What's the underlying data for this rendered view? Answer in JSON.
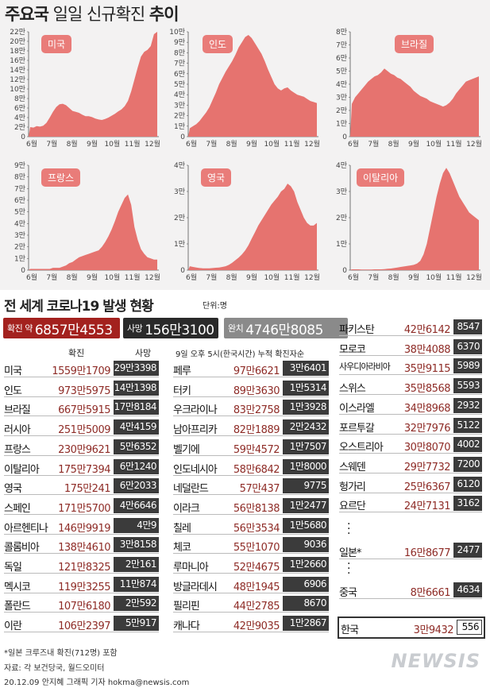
{
  "title": {
    "bold1": "주요국",
    "normal": " 일일 신규확진 ",
    "bold2": "추이"
  },
  "chart_data": [
    {
      "type": "area",
      "label": "미국",
      "y_ticks": [
        "0",
        "2만",
        "4만",
        "6만",
        "8만",
        "10만",
        "12만",
        "14만",
        "16만",
        "18만",
        "20만",
        "22만"
      ],
      "x_ticks": [
        "6월",
        "7월",
        "8월",
        "9월",
        "10월",
        "11월",
        "12월"
      ],
      "ylim": [
        0,
        22
      ],
      "values": [
        2.0,
        1.9,
        2.2,
        2.1,
        2.3,
        2.9,
        4.0,
        5.2,
        6.2,
        6.8,
        6.9,
        6.6,
        6.0,
        5.4,
        5.2,
        5.0,
        4.6,
        4.3,
        4.3,
        4.1,
        3.8,
        3.6,
        3.5,
        3.7,
        4.0,
        4.4,
        4.8,
        5.3,
        5.7,
        6.4,
        7.5,
        9.5,
        12.0,
        14.5,
        16.8,
        17.8,
        18.2,
        19.0,
        21.5,
        22.0
      ]
    },
    {
      "type": "area",
      "label": "인도",
      "y_ticks": [
        "0",
        "1만",
        "2만",
        "3만",
        "4만",
        "5만",
        "6만",
        "7만",
        "8만",
        "9만",
        "10만"
      ],
      "x_ticks": [
        "6월",
        "7월",
        "8월",
        "9월",
        "10월",
        "11월",
        "12월"
      ],
      "ylim": [
        0,
        10
      ],
      "values": [
        0.8,
        1.0,
        1.2,
        1.5,
        1.9,
        2.3,
        2.8,
        3.5,
        4.2,
        5.0,
        5.6,
        6.2,
        6.7,
        7.2,
        7.8,
        8.5,
        9.0,
        9.5,
        9.7,
        9.4,
        8.9,
        8.4,
        7.9,
        7.2,
        6.4,
        5.7,
        5.0,
        4.6,
        4.4,
        4.6,
        4.7,
        4.4,
        4.2,
        4.0,
        3.9,
        3.8,
        3.6,
        3.4,
        3.3,
        3.2
      ]
    },
    {
      "type": "area",
      "label": "브라질",
      "y_ticks": [
        "0",
        "1만",
        "2만",
        "3만",
        "4만",
        "5만",
        "6만",
        "7만",
        "8만"
      ],
      "x_ticks": [
        "6월",
        "7월",
        "8월",
        "9월",
        "10월",
        "11월",
        "12월"
      ],
      "ylim": [
        0,
        8
      ],
      "values": [
        2.5,
        3.0,
        3.3,
        3.6,
        3.9,
        4.2,
        4.4,
        4.6,
        4.7,
        4.9,
        5.2,
        5.0,
        4.8,
        4.7,
        4.5,
        4.4,
        4.2,
        4.0,
        3.8,
        3.5,
        3.3,
        3.1,
        3.0,
        2.9,
        2.7,
        2.6,
        2.5,
        2.4,
        2.3,
        2.4,
        2.6,
        2.9,
        3.3,
        3.6,
        3.9,
        4.2,
        4.3,
        4.4,
        4.5,
        4.6
      ]
    },
    {
      "type": "area",
      "label": "프랑스",
      "y_ticks": [
        "0",
        "1만",
        "2만",
        "3만",
        "4만",
        "5만",
        "6만",
        "7만",
        "8만",
        "9만"
      ],
      "x_ticks": [
        "6월",
        "7월",
        "8월",
        "9월",
        "10월",
        "11월",
        "12월"
      ],
      "ylim": [
        0,
        9
      ],
      "values": [
        0.1,
        0.1,
        0.1,
        0.1,
        0.1,
        0.1,
        0.1,
        0.2,
        0.2,
        0.2,
        0.3,
        0.4,
        0.6,
        0.7,
        0.9,
        1.1,
        1.2,
        1.3,
        1.4,
        1.5,
        1.6,
        1.7,
        2.0,
        2.4,
        2.9,
        3.5,
        4.2,
        5.0,
        5.6,
        6.2,
        6.5,
        5.6,
        3.7,
        2.6,
        1.8,
        1.4,
        1.1,
        1.0,
        0.9,
        0.9
      ]
    },
    {
      "type": "area",
      "label": "영국",
      "y_ticks": [
        "0",
        "1만",
        "2만",
        "3만",
        "4만"
      ],
      "x_ticks": [
        "6월",
        "7월",
        "8월",
        "9월",
        "10월",
        "11월",
        "12월"
      ],
      "ylim": [
        0,
        4
      ],
      "values": [
        0.15,
        0.12,
        0.1,
        0.08,
        0.07,
        0.07,
        0.07,
        0.08,
        0.09,
        0.1,
        0.12,
        0.15,
        0.2,
        0.28,
        0.38,
        0.48,
        0.6,
        0.75,
        0.95,
        1.2,
        1.45,
        1.7,
        1.9,
        2.1,
        2.3,
        2.5,
        2.65,
        2.8,
        3.0,
        3.1,
        3.3,
        3.2,
        3.0,
        2.6,
        2.3,
        2.0,
        1.8,
        1.7,
        1.7,
        1.8
      ]
    },
    {
      "type": "area",
      "label": "이탈리아",
      "y_ticks": [
        "0",
        "1만",
        "2만",
        "3만",
        "4만"
      ],
      "x_ticks": [
        "6월",
        "7월",
        "8월",
        "9월",
        "10월",
        "11월",
        "12월"
      ],
      "ylim": [
        0,
        4
      ],
      "values": [
        0.03,
        0.03,
        0.03,
        0.02,
        0.02,
        0.02,
        0.02,
        0.03,
        0.03,
        0.03,
        0.04,
        0.05,
        0.06,
        0.08,
        0.1,
        0.12,
        0.14,
        0.16,
        0.18,
        0.2,
        0.25,
        0.35,
        0.6,
        1.0,
        1.6,
        2.2,
        2.8,
        3.3,
        3.7,
        3.9,
        3.7,
        3.4,
        3.1,
        2.8,
        2.6,
        2.4,
        2.2,
        2.1,
        2.0,
        1.9
      ]
    }
  ],
  "section": {
    "title": "전 세계 코로나19 발생 현황",
    "unit": "단위:명"
  },
  "summary": [
    {
      "label": "확진 약",
      "value": "6857만4553",
      "color": "#a3211e"
    },
    {
      "label": "사망",
      "value": "156만3100",
      "color": "#2a2a2a"
    },
    {
      "label": "완치",
      "value": "4746만8085",
      "color": "#8a8a8a"
    }
  ],
  "col_headers": {
    "confirmed": "확진",
    "deaths": "사망",
    "note": "9일 오후 5시(한국시간) 누적 확진자순"
  },
  "col1": [
    {
      "name": "미국",
      "confirmed": "1559만1709",
      "deaths": "29만3398"
    },
    {
      "name": "인도",
      "confirmed": "973만5975",
      "deaths": "14만1398"
    },
    {
      "name": "브라질",
      "confirmed": "667만5915",
      "deaths": "17만8184"
    },
    {
      "name": "러시아",
      "confirmed": "251만5009",
      "deaths": "4만4159"
    },
    {
      "name": "프랑스",
      "confirmed": "230만9621",
      "deaths": "5만6352"
    },
    {
      "name": "이탈리아",
      "confirmed": "175만7394",
      "deaths": "6만1240"
    },
    {
      "name": "영국",
      "confirmed": "175만241",
      "deaths": "6만2033"
    },
    {
      "name": "스페인",
      "confirmed": "171만5700",
      "deaths": "4만6646"
    },
    {
      "name": "아르헨티나",
      "confirmed": "146만9919",
      "deaths": "4만9"
    },
    {
      "name": "콜롬비아",
      "confirmed": "138만4610",
      "deaths": "3만8158"
    },
    {
      "name": "독일",
      "confirmed": "121만8325",
      "deaths": "2만161"
    },
    {
      "name": "멕시코",
      "confirmed": "119만3255",
      "deaths": "11만874"
    },
    {
      "name": "폴란드",
      "confirmed": "107만6180",
      "deaths": "2만592"
    },
    {
      "name": "이란",
      "confirmed": "106만2397",
      "deaths": "5만917"
    }
  ],
  "col2": [
    {
      "name": "페루",
      "confirmed": "97만6621",
      "deaths": "3만6401"
    },
    {
      "name": "터키",
      "confirmed": "89만3630",
      "deaths": "1만5314"
    },
    {
      "name": "우크라이나",
      "confirmed": "83만2758",
      "deaths": "1만3928"
    },
    {
      "name": "남아프리카",
      "confirmed": "82만1889",
      "deaths": "2만2432"
    },
    {
      "name": "벨기에",
      "confirmed": "59만4572",
      "deaths": "1만7507"
    },
    {
      "name": "인도네시아",
      "confirmed": "58만6842",
      "deaths": "1만8000"
    },
    {
      "name": "네덜란드",
      "confirmed": "57만437",
      "deaths": "9775"
    },
    {
      "name": "이라크",
      "confirmed": "56만8138",
      "deaths": "1만2477"
    },
    {
      "name": "칠레",
      "confirmed": "56만3534",
      "deaths": "1만5680"
    },
    {
      "name": "체코",
      "confirmed": "55만1070",
      "deaths": "9036"
    },
    {
      "name": "루마니아",
      "confirmed": "52만4675",
      "deaths": "1만2660"
    },
    {
      "name": "방글라데시",
      "confirmed": "48만1945",
      "deaths": "6906"
    },
    {
      "name": "필리핀",
      "confirmed": "44만2785",
      "deaths": "8670"
    },
    {
      "name": "캐나다",
      "confirmed": "42만9035",
      "deaths": "1만2867"
    }
  ],
  "col3": [
    {
      "name": "파키스탄",
      "confirmed": "42만6142",
      "deaths": "8547"
    },
    {
      "name": "모로코",
      "confirmed": "38만4088",
      "deaths": "6370"
    },
    {
      "name": "사우디아라비아",
      "confirmed": "35만9115",
      "deaths": "5989"
    },
    {
      "name": "스위스",
      "confirmed": "35만8568",
      "deaths": "5593"
    },
    {
      "name": "이스라엘",
      "confirmed": "34만8968",
      "deaths": "2932"
    },
    {
      "name": "포르투갈",
      "confirmed": "32만7976",
      "deaths": "5122"
    },
    {
      "name": "오스트리아",
      "confirmed": "30만8070",
      "deaths": "4002"
    },
    {
      "name": "스웨덴",
      "confirmed": "29만7732",
      "deaths": "7200"
    },
    {
      "name": "헝가리",
      "confirmed": "25만6367",
      "deaths": "6120"
    },
    {
      "name": "요르단",
      "confirmed": "24만7131",
      "deaths": "3162"
    }
  ],
  "japan": {
    "name": "일본*",
    "confirmed": "16만8677",
    "deaths": "2477"
  },
  "china": {
    "name": "중국",
    "confirmed": "8만6661",
    "deaths": "4634"
  },
  "korea": {
    "name": "한국",
    "confirmed": "3만9432",
    "deaths": "556"
  },
  "footnote": "*일본 크루즈내 확진(712명) 포함",
  "source": "자료: 각 보건당국, 월드오미터",
  "credit": "20.12.09 안지혜 그래픽 기자 hokma@newsis.com",
  "logo": "NEWSIS"
}
